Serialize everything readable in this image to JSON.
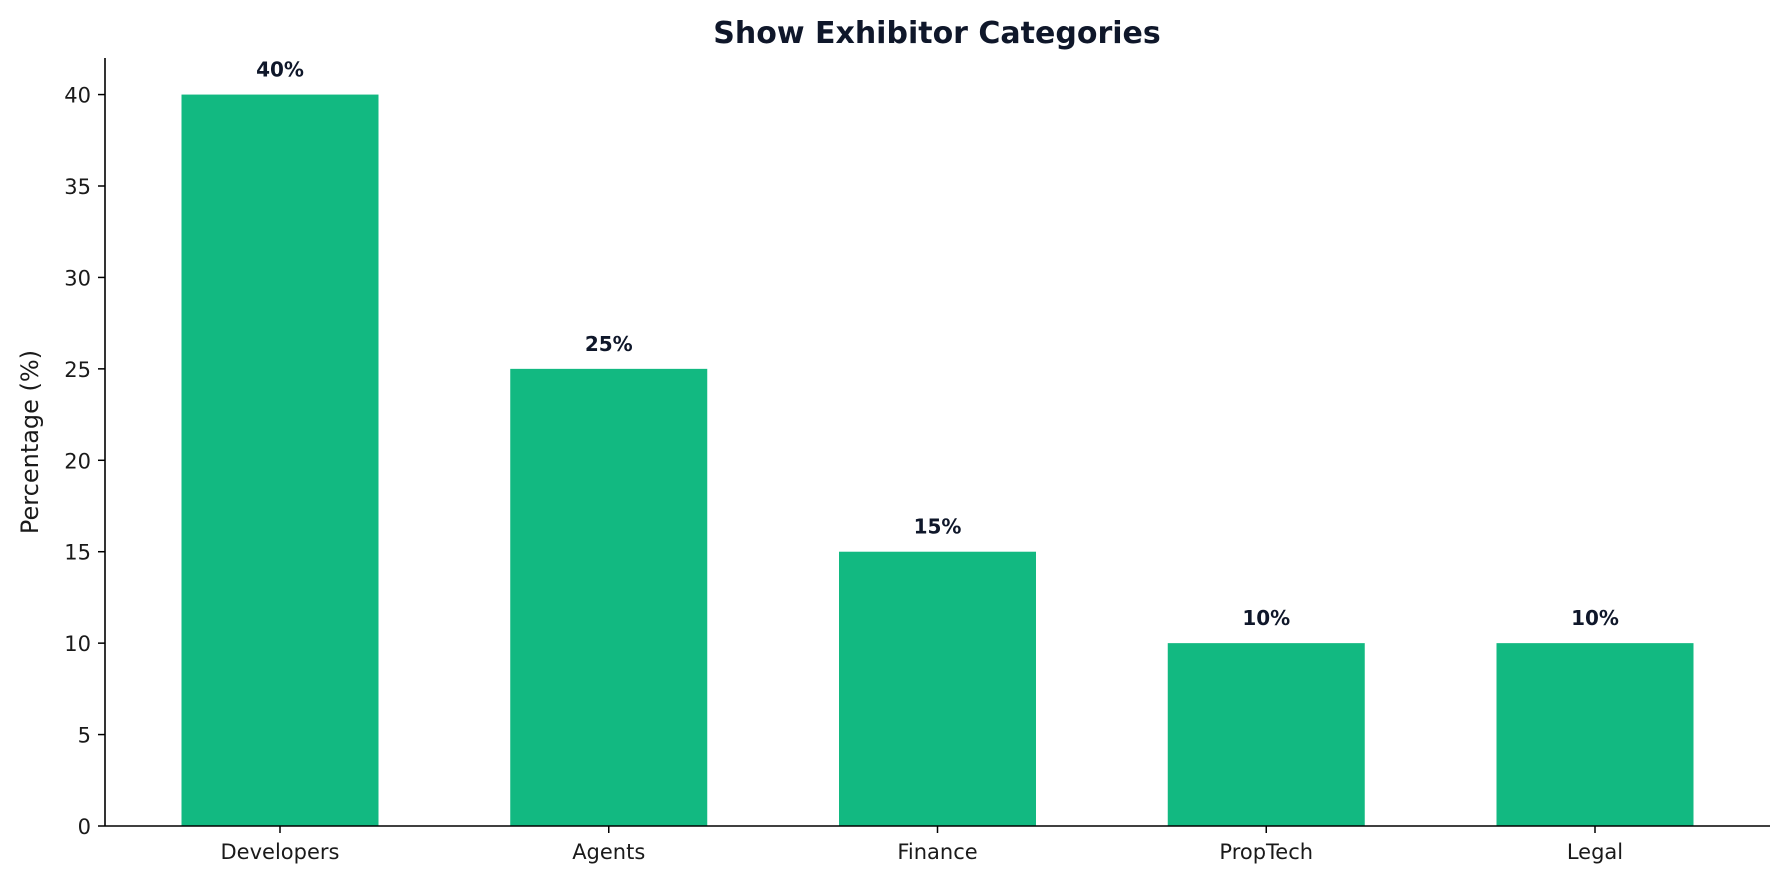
{
  "chart_data": {
    "type": "bar",
    "title": "Show Exhibitor Categories",
    "xlabel": "",
    "ylabel": "Percentage (%)",
    "categories": [
      "Developers",
      "Agents",
      "Finance",
      "PropTech",
      "Legal"
    ],
    "values": [
      40,
      25,
      15,
      10,
      10
    ],
    "data_labels": [
      "40%",
      "25%",
      "15%",
      "10%",
      "10%"
    ],
    "ylim": [
      0,
      42
    ],
    "yticks": [
      0,
      5,
      10,
      15,
      20,
      25,
      30,
      35,
      40
    ],
    "grid": false,
    "legend": "none",
    "colors": {
      "bar": "#12b981",
      "title": "#0f172a",
      "data_label": "#0f172a",
      "axis": "#000000",
      "text": "#1a1a1a"
    }
  }
}
